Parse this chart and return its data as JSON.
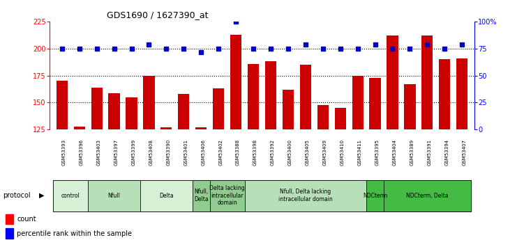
{
  "title": "GDS1690 / 1627390_at",
  "samples": [
    "GSM53393",
    "GSM53396",
    "GSM53403",
    "GSM53397",
    "GSM53399",
    "GSM53408",
    "GSM53390",
    "GSM53401",
    "GSM53406",
    "GSM53402",
    "GSM53388",
    "GSM53398",
    "GSM53392",
    "GSM53400",
    "GSM53405",
    "GSM53409",
    "GSM53410",
    "GSM53411",
    "GSM53395",
    "GSM53404",
    "GSM53389",
    "GSM53391",
    "GSM53394",
    "GSM53407"
  ],
  "counts": [
    170,
    128,
    164,
    159,
    155,
    175,
    127,
    158,
    127,
    163,
    213,
    186,
    188,
    162,
    185,
    148,
    145,
    175,
    173,
    212,
    167,
    212,
    190,
    191
  ],
  "percentiles": [
    75,
    75,
    75,
    75,
    75,
    79,
    75,
    75,
    72,
    75,
    100,
    75,
    75,
    75,
    79,
    75,
    75,
    75,
    79,
    75,
    75,
    79,
    75,
    79
  ],
  "protocol_groups": [
    {
      "label": "control",
      "start": 0,
      "end": 2,
      "color": "#d6f0d6"
    },
    {
      "label": "Nfull",
      "start": 2,
      "end": 5,
      "color": "#b8e0b8"
    },
    {
      "label": "Delta",
      "start": 5,
      "end": 8,
      "color": "#d6f0d6"
    },
    {
      "label": "Nfull,\nDelta",
      "start": 8,
      "end": 9,
      "color": "#90cc90"
    },
    {
      "label": "Delta lacking\nintracellular\ndomain",
      "start": 9,
      "end": 11,
      "color": "#90cc90"
    },
    {
      "label": "Nfull, Delta lacking\nintracellular domain",
      "start": 11,
      "end": 18,
      "color": "#b8e0b8"
    },
    {
      "label": "NDCterm",
      "start": 18,
      "end": 19,
      "color": "#44bb44"
    },
    {
      "label": "NDCterm, Delta",
      "start": 19,
      "end": 24,
      "color": "#44bb44"
    }
  ],
  "ylim_left": [
    125,
    225
  ],
  "ylim_right": [
    0,
    100
  ],
  "yticks_left": [
    125,
    150,
    175,
    200,
    225
  ],
  "yticks_right": [
    0,
    25,
    50,
    75,
    100
  ],
  "bar_color": "#cc0000",
  "dot_color": "#0000cc",
  "sample_bg": "#c0c0c0",
  "gridlines": [
    150,
    175,
    200
  ]
}
